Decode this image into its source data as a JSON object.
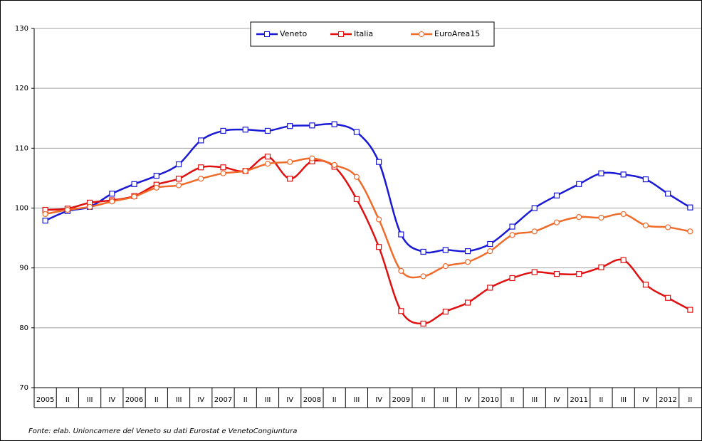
{
  "chart_data": {
    "type": "line",
    "categories": [
      "2005",
      "II",
      "III",
      "IV",
      "2006",
      "II",
      "III",
      "IV",
      "2007",
      "II",
      "III",
      "IV",
      "2008",
      "II",
      "III",
      "IV",
      "2009",
      "II",
      "III",
      "IV",
      "2010",
      "II",
      "III",
      "IV",
      "2011",
      "II",
      "III",
      "IV",
      "2012",
      "II"
    ],
    "series": [
      {
        "name": "Veneto",
        "color": "#1a1ad6",
        "marker": "square",
        "values": [
          97.9,
          99.5,
          100.2,
          102.4,
          104,
          105.4,
          107.3,
          111.3,
          112.9,
          113.1,
          112.9,
          113.7,
          113.8,
          114,
          112.7,
          107.7,
          95.6,
          92.7,
          93.0,
          92.8,
          94.0,
          96.9,
          100,
          102.1,
          104,
          105.8,
          105.6,
          104.8,
          102.4,
          100.1
        ]
      },
      {
        "name": "Italia",
        "color": "#e01010",
        "marker": "square",
        "values": [
          99.7,
          99.9,
          100.9,
          101.3,
          102,
          103.9,
          104.9,
          106.8,
          106.8,
          106.2,
          108.6,
          104.9,
          107.8,
          106.9,
          101.5,
          93.5,
          82.8,
          80.7,
          82.7,
          84.2,
          86.7,
          88.3,
          89.3,
          89,
          89,
          90.1,
          91.3,
          87.2,
          85,
          83
        ]
      },
      {
        "name": "EuroArea15",
        "color": "#f06a2a",
        "marker": "circle",
        "values": [
          99,
          99.7,
          100.2,
          101.1,
          101.9,
          103.4,
          103.8,
          104.9,
          105.8,
          106.2,
          107.4,
          107.7,
          108.3,
          107.2,
          105.2,
          98.1,
          89.5,
          88.6,
          90.3,
          91,
          92.8,
          95.5,
          96.1,
          97.6,
          98.5,
          98.4,
          99,
          97.1,
          96.8,
          96.1
        ]
      }
    ],
    "ylim": [
      70,
      130
    ],
    "yticks": [
      70,
      80,
      90,
      100,
      110,
      120,
      130
    ],
    "grid": true,
    "legend": "top",
    "source": "Fonte: elab. Unioncamere del Veneto su dati Eurostat e VenetoCongiuntura"
  }
}
